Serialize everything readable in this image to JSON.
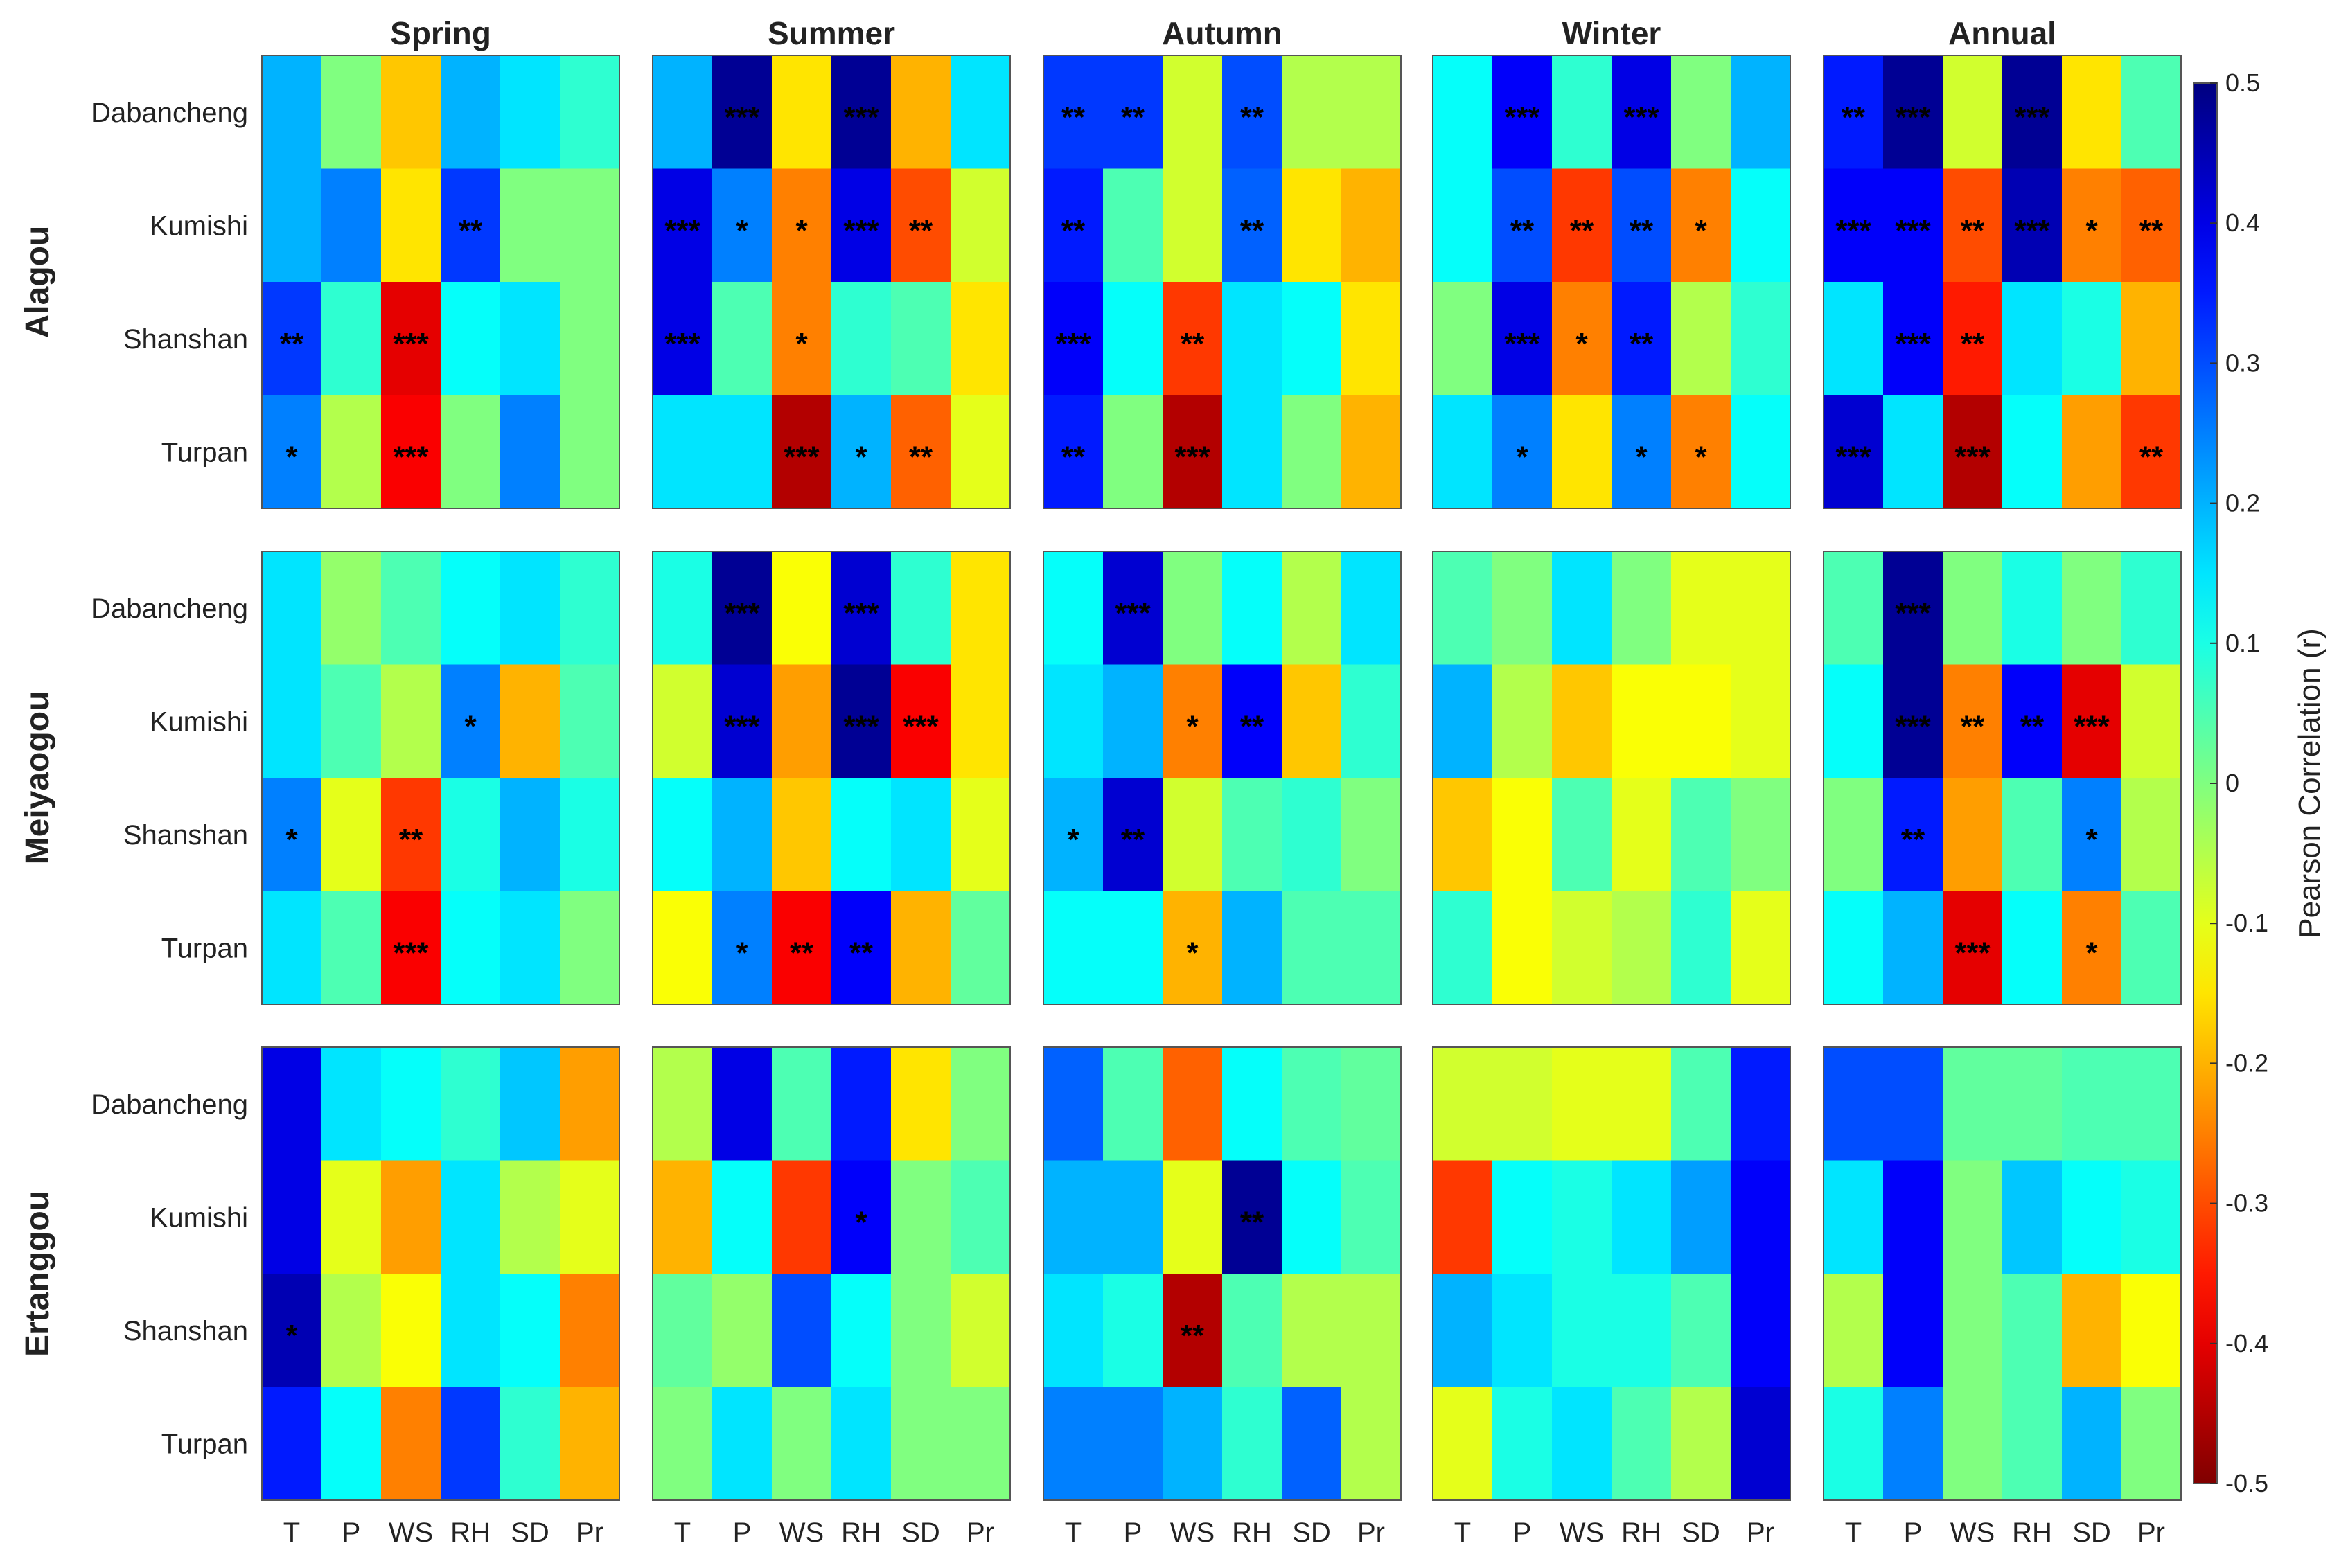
{
  "chart_data": {
    "type": "heatmap",
    "title": "",
    "seasons": [
      "Spring",
      "Summer",
      "Autumn",
      "Winter",
      "Annual"
    ],
    "groups": [
      "Alagou",
      "Meiyaogou",
      "Ertanggou"
    ],
    "stations": [
      "Dabancheng",
      "Kumishi",
      "Shanshan",
      "Turpan"
    ],
    "variables": [
      "T",
      "P",
      "WS",
      "RH",
      "SD",
      "Pr"
    ],
    "colorbar": {
      "label": "Pearson Correlation (r)",
      "range": [
        -0.5,
        0.5
      ],
      "ticks": [
        "0.5",
        "0.4",
        "0.3",
        "0.2",
        "0.1",
        "0",
        "-0.1",
        "-0.2",
        "-0.3",
        "-0.4",
        "-0.5"
      ]
    },
    "values": {
      "Alagou": {
        "Spring": [
          [
            0.2,
            0.0,
            -0.18,
            0.2,
            0.15,
            0.08
          ],
          [
            0.2,
            0.25,
            -0.15,
            0.32,
            0.0,
            0.0
          ],
          [
            0.32,
            0.08,
            -0.4,
            0.12,
            0.15,
            0.0
          ],
          [
            0.25,
            -0.05,
            -0.38,
            0.0,
            0.25,
            0.0
          ]
        ],
        "Summer": [
          [
            0.2,
            0.48,
            -0.15,
            0.48,
            -0.2,
            0.15
          ],
          [
            0.4,
            0.25,
            -0.25,
            0.4,
            -0.3,
            -0.08
          ],
          [
            0.4,
            0.05,
            -0.25,
            0.08,
            0.05,
            -0.15
          ],
          [
            0.15,
            0.15,
            -0.45,
            0.2,
            -0.28,
            -0.1
          ]
        ],
        "Autumn": [
          [
            0.32,
            0.32,
            -0.08,
            0.3,
            -0.05,
            -0.05
          ],
          [
            0.35,
            0.05,
            -0.08,
            0.28,
            -0.15,
            -0.2
          ],
          [
            0.38,
            0.12,
            -0.32,
            0.15,
            0.12,
            -0.15
          ],
          [
            0.35,
            0.0,
            -0.45,
            0.15,
            0.0,
            -0.2
          ]
        ],
        "Winter": [
          [
            0.12,
            0.38,
            0.08,
            0.4,
            0.0,
            0.2
          ],
          [
            0.12,
            0.3,
            -0.32,
            0.3,
            -0.25,
            0.12
          ],
          [
            0.0,
            0.4,
            -0.25,
            0.35,
            -0.05,
            0.08
          ],
          [
            0.15,
            0.25,
            -0.15,
            0.25,
            -0.25,
            0.12
          ]
        ],
        "Annual": [
          [
            0.35,
            0.48,
            -0.08,
            0.48,
            -0.15,
            0.05
          ],
          [
            0.38,
            0.38,
            -0.3,
            0.45,
            -0.25,
            -0.28
          ],
          [
            0.15,
            0.38,
            -0.35,
            0.15,
            0.1,
            -0.2
          ],
          [
            0.42,
            0.15,
            -0.45,
            0.12,
            -0.22,
            -0.32
          ]
        ]
      },
      "Meiyaogou": {
        "Spring": [
          [
            0.15,
            -0.02,
            0.05,
            0.12,
            0.15,
            0.08
          ],
          [
            0.15,
            0.05,
            -0.05,
            0.25,
            -0.2,
            0.05
          ],
          [
            0.25,
            -0.1,
            -0.32,
            0.1,
            0.2,
            0.1
          ],
          [
            0.15,
            0.05,
            -0.38,
            0.12,
            0.15,
            0.0
          ]
        ],
        "Summer": [
          [
            0.1,
            0.48,
            -0.12,
            0.42,
            0.08,
            -0.15
          ],
          [
            -0.08,
            0.42,
            -0.22,
            0.48,
            -0.38,
            -0.15
          ],
          [
            0.12,
            0.2,
            -0.18,
            0.12,
            0.15,
            -0.1
          ],
          [
            -0.12,
            0.25,
            -0.38,
            0.38,
            -0.2,
            0.03
          ]
        ],
        "Autumn": [
          [
            0.12,
            0.42,
            0.0,
            0.12,
            -0.05,
            0.15
          ],
          [
            0.15,
            0.2,
            -0.25,
            0.38,
            -0.18,
            0.08
          ],
          [
            0.2,
            0.42,
            -0.08,
            0.05,
            0.08,
            0.0
          ],
          [
            0.12,
            0.12,
            -0.2,
            0.2,
            0.05,
            0.05
          ]
        ],
        "Winter": [
          [
            0.05,
            0.0,
            0.15,
            0.0,
            -0.1,
            -0.1
          ],
          [
            0.2,
            -0.05,
            -0.18,
            -0.12,
            -0.12,
            -0.1
          ],
          [
            -0.18,
            -0.12,
            0.05,
            -0.1,
            0.05,
            0.0
          ],
          [
            0.08,
            -0.12,
            -0.08,
            -0.05,
            0.08,
            -0.1
          ]
        ],
        "Annual": [
          [
            0.05,
            0.48,
            0.0,
            0.1,
            0.0,
            0.08
          ],
          [
            0.12,
            0.48,
            -0.25,
            0.38,
            -0.4,
            -0.08
          ],
          [
            0.0,
            0.35,
            -0.22,
            0.05,
            0.25,
            -0.05
          ],
          [
            0.12,
            0.2,
            -0.4,
            0.12,
            -0.25,
            0.05
          ]
        ]
      },
      "Ertanggou": {
        "Spring": [
          [
            0.4,
            0.15,
            0.12,
            0.08,
            0.18,
            -0.22
          ],
          [
            0.4,
            -0.1,
            -0.22,
            0.15,
            -0.05,
            -0.1
          ],
          [
            0.45,
            -0.05,
            -0.12,
            0.15,
            0.12,
            -0.25
          ],
          [
            0.35,
            0.12,
            -0.25,
            0.32,
            0.08,
            -0.2
          ]
        ],
        "Summer": [
          [
            -0.05,
            0.4,
            0.05,
            0.35,
            -0.15,
            0.0
          ],
          [
            -0.2,
            0.12,
            -0.32,
            0.38,
            0.0,
            0.05
          ],
          [
            0.03,
            -0.02,
            0.3,
            0.12,
            0.0,
            -0.08
          ],
          [
            0.0,
            0.15,
            0.0,
            0.15,
            0.0,
            0.0
          ]
        ],
        "Autumn": [
          [
            0.28,
            0.05,
            -0.28,
            0.12,
            0.05,
            0.03
          ],
          [
            0.2,
            0.2,
            -0.1,
            0.48,
            0.12,
            0.05
          ],
          [
            0.15,
            0.1,
            -0.45,
            0.05,
            -0.05,
            -0.05
          ],
          [
            0.25,
            0.25,
            0.2,
            0.08,
            0.28,
            -0.05
          ]
        ],
        "Winter": [
          [
            -0.08,
            -0.08,
            -0.1,
            -0.1,
            0.05,
            0.35
          ],
          [
            -0.32,
            0.12,
            0.1,
            0.15,
            0.22,
            0.38
          ],
          [
            0.2,
            0.15,
            0.1,
            0.1,
            0.05,
            0.38
          ],
          [
            -0.1,
            0.1,
            0.15,
            0.05,
            -0.05,
            0.42
          ]
        ],
        "Annual": [
          [
            0.3,
            0.3,
            0.03,
            0.03,
            0.05,
            0.05
          ],
          [
            0.15,
            0.38,
            0.0,
            0.18,
            0.12,
            0.1
          ],
          [
            -0.05,
            0.38,
            0.0,
            0.05,
            -0.2,
            -0.12
          ],
          [
            0.1,
            0.25,
            0.0,
            0.05,
            0.2,
            0.0
          ]
        ]
      }
    },
    "significance": {
      "Alagou": {
        "Spring": [
          [
            "",
            "",
            "",
            "",
            "",
            ""
          ],
          [
            "",
            "",
            "",
            "**",
            "",
            ""
          ],
          [
            "**",
            "",
            "***",
            "",
            "",
            ""
          ],
          [
            "*",
            "",
            "***",
            "",
            "",
            ""
          ]
        ],
        "Summer": [
          [
            "",
            "***",
            "",
            "***",
            "",
            ""
          ],
          [
            "***",
            "*",
            "*",
            "***",
            "**",
            ""
          ],
          [
            "***",
            "",
            "*",
            "",
            "",
            ""
          ],
          [
            "",
            "",
            "***",
            "*",
            "**",
            ""
          ]
        ],
        "Autumn": [
          [
            "**",
            "**",
            "",
            "**",
            "",
            ""
          ],
          [
            "**",
            "",
            "",
            "**",
            "",
            ""
          ],
          [
            "***",
            "",
            "**",
            "",
            "",
            ""
          ],
          [
            "**",
            "",
            "***",
            "",
            "",
            ""
          ]
        ],
        "Winter": [
          [
            "",
            "***",
            "",
            "***",
            "",
            ""
          ],
          [
            "",
            "**",
            "**",
            "**",
            "*",
            ""
          ],
          [
            "",
            "***",
            "*",
            "**",
            "",
            ""
          ],
          [
            "",
            "*",
            "",
            "*",
            "*",
            ""
          ]
        ],
        "Annual": [
          [
            "**",
            "***",
            "",
            "***",
            "",
            ""
          ],
          [
            "***",
            "***",
            "**",
            "***",
            "*",
            "**"
          ],
          [
            "",
            "***",
            "**",
            "",
            "",
            ""
          ],
          [
            "***",
            "",
            "***",
            "",
            "",
            "**"
          ]
        ]
      },
      "Meiyaogou": {
        "Spring": [
          [
            "",
            "",
            "",
            "",
            "",
            ""
          ],
          [
            "",
            "",
            "",
            "*",
            "",
            ""
          ],
          [
            "*",
            "",
            "**",
            "",
            "",
            ""
          ],
          [
            "",
            "",
            "***",
            "",
            "",
            ""
          ]
        ],
        "Summer": [
          [
            "",
            "***",
            "",
            "***",
            "",
            ""
          ],
          [
            "",
            "***",
            "",
            "***",
            "***",
            ""
          ],
          [
            "",
            "",
            "",
            "",
            "",
            ""
          ],
          [
            "",
            "*",
            "**",
            "**",
            "",
            ""
          ]
        ],
        "Autumn": [
          [
            "",
            "***",
            "",
            "",
            "",
            ""
          ],
          [
            "",
            "",
            "*",
            "**",
            "",
            ""
          ],
          [
            "*",
            "**",
            "",
            "",
            "",
            ""
          ],
          [
            "",
            "",
            "*",
            "",
            "",
            ""
          ]
        ],
        "Winter": [
          [
            "",
            "",
            "",
            "",
            "",
            ""
          ],
          [
            "",
            "",
            "",
            "",
            "",
            ""
          ],
          [
            "",
            "",
            "",
            "",
            "",
            ""
          ],
          [
            "",
            "",
            "",
            "",
            "",
            ""
          ]
        ],
        "Annual": [
          [
            "",
            "***",
            "",
            "",
            "",
            ""
          ],
          [
            "",
            "***",
            "**",
            "**",
            "***",
            ""
          ],
          [
            "",
            "**",
            "",
            "",
            "*",
            ""
          ],
          [
            "",
            "",
            "***",
            "",
            "*",
            ""
          ]
        ]
      },
      "Ertanggou": {
        "Spring": [
          [
            "",
            "",
            "",
            "",
            "",
            ""
          ],
          [
            "",
            "",
            "",
            "",
            "",
            ""
          ],
          [
            "*",
            "",
            "",
            "",
            "",
            ""
          ],
          [
            "",
            "",
            "",
            "",
            "",
            ""
          ]
        ],
        "Summer": [
          [
            "",
            "",
            "",
            "",
            "",
            ""
          ],
          [
            "",
            "",
            "",
            "*",
            "",
            ""
          ],
          [
            "",
            "",
            "",
            "",
            "",
            ""
          ],
          [
            "",
            "",
            "",
            "",
            "",
            ""
          ]
        ],
        "Autumn": [
          [
            "",
            "",
            "",
            "",
            "",
            ""
          ],
          [
            "",
            "",
            "",
            "**",
            "",
            ""
          ],
          [
            "",
            "",
            "**",
            "",
            "",
            ""
          ],
          [
            "",
            "",
            "",
            "",
            "",
            ""
          ]
        ],
        "Winter": [
          [
            "",
            "",
            "",
            "",
            "",
            ""
          ],
          [
            "",
            "",
            "",
            "",
            "",
            ""
          ],
          [
            "",
            "",
            "",
            "",
            "",
            ""
          ],
          [
            "",
            "",
            "",
            "",
            "",
            ""
          ]
        ],
        "Annual": [
          [
            "",
            "",
            "",
            "",
            "",
            ""
          ],
          [
            "",
            "",
            "",
            "",
            "",
            ""
          ],
          [
            "",
            "",
            "",
            "",
            "",
            ""
          ],
          [
            "",
            "",
            "",
            "",
            "",
            ""
          ]
        ]
      }
    }
  }
}
